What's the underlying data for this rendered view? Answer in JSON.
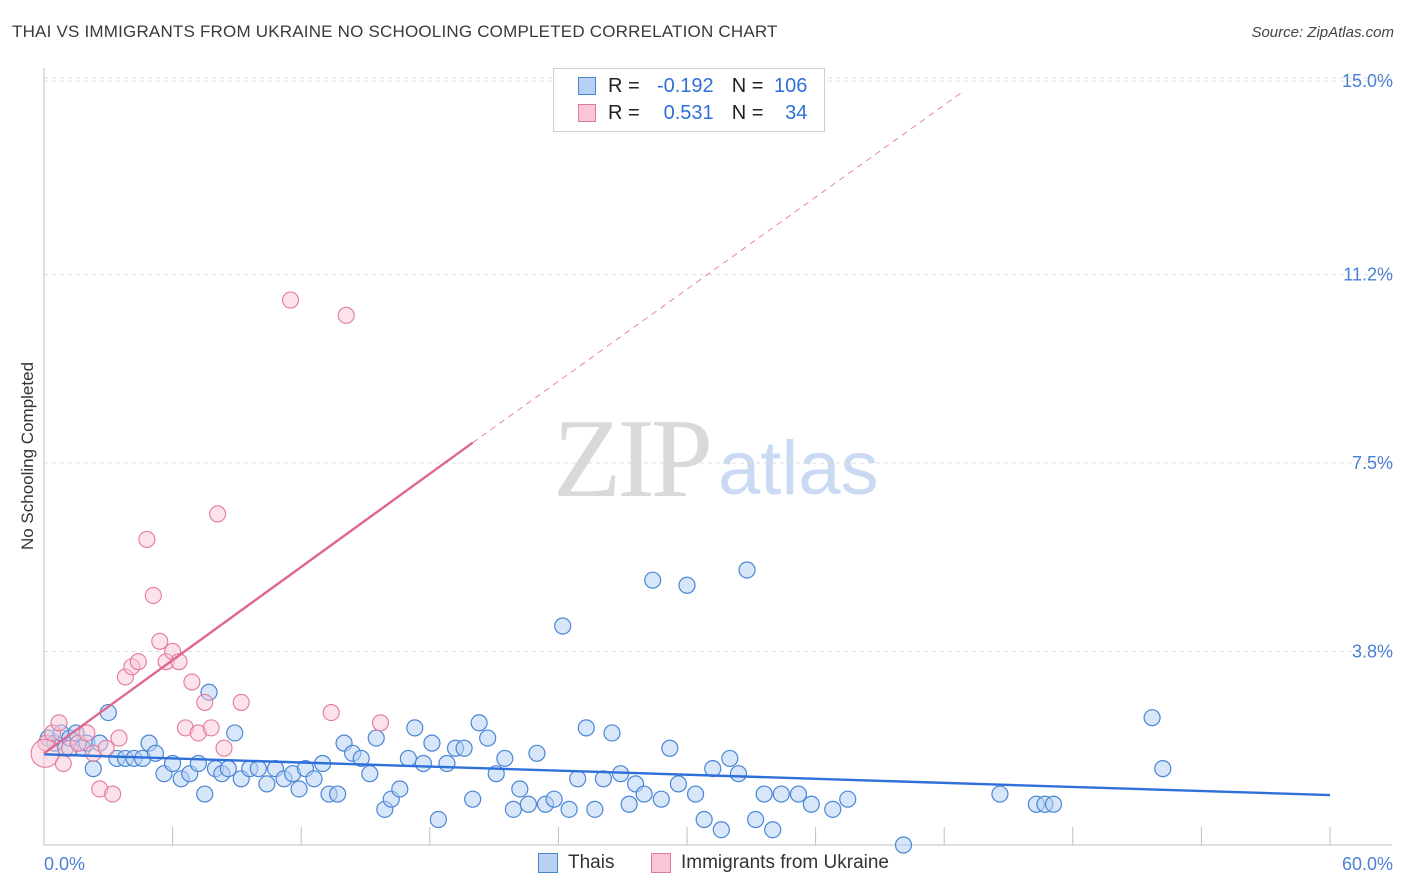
{
  "title": "THAI VS IMMIGRANTS FROM UKRAINE NO SCHOOLING COMPLETED CORRELATION CHART",
  "source": "Source: ZipAtlas.com",
  "watermark": {
    "zip": "ZIP",
    "atlas": "atlas"
  },
  "legend": {
    "rows": [
      {
        "r_label": "R =",
        "r_value": "-0.192",
        "n_label": "N =",
        "n_value": "106"
      },
      {
        "r_label": "R =",
        "r_value": "0.531",
        "n_label": "N =",
        "n_value": "34"
      }
    ]
  },
  "bottom_legend": [
    "Thais",
    "Immigrants from Ukraine"
  ],
  "colors": {
    "thai_fill": "#b7d1f3",
    "thai_stroke": "#4a86d6",
    "thai_line": "#2f6fd8",
    "ukr_fill": "#f9c6d6",
    "ukr_stroke": "#e27a9c",
    "ukr_line": "#e0668f",
    "grid": "#dcdcdc",
    "axis_text": "#4a7fd6"
  },
  "chart_data": {
    "type": "scatter",
    "title": "THAI VS IMMIGRANTS FROM UKRAINE NO SCHOOLING COMPLETED CORRELATION CHART",
    "xlabel": "",
    "ylabel": "No Schooling Completed",
    "xlim": [
      0,
      60
    ],
    "ylim": [
      0,
      15
    ],
    "x_tick_labels": [
      "0.0%",
      "60.0%"
    ],
    "y_ticks": [
      3.8,
      7.5,
      11.2,
      15.0
    ],
    "y_tick_labels": [
      "3.8%",
      "7.5%",
      "11.2%",
      "15.0%"
    ],
    "grid": true,
    "series": [
      {
        "name": "Thais",
        "r": -0.192,
        "n": 106,
        "trend": {
          "x0": 0,
          "y0": 1.78,
          "x1": 60,
          "y1": 0.98
        },
        "points": [
          [
            0.2,
            2.1
          ],
          [
            0.5,
            2.0
          ],
          [
            0.8,
            2.2
          ],
          [
            1.0,
            1.9
          ],
          [
            1.2,
            2.1
          ],
          [
            1.5,
            2.2
          ],
          [
            1.8,
            1.9
          ],
          [
            2.0,
            2.0
          ],
          [
            2.3,
            1.5
          ],
          [
            2.6,
            2.0
          ],
          [
            3.0,
            2.6
          ],
          [
            3.4,
            1.7
          ],
          [
            3.8,
            1.7
          ],
          [
            4.2,
            1.7
          ],
          [
            4.6,
            1.7
          ],
          [
            4.9,
            2.0
          ],
          [
            5.2,
            1.8
          ],
          [
            5.6,
            1.4
          ],
          [
            6.0,
            1.6
          ],
          [
            6.4,
            1.3
          ],
          [
            6.8,
            1.4
          ],
          [
            7.2,
            1.6
          ],
          [
            7.5,
            1.0
          ],
          [
            7.7,
            3.0
          ],
          [
            8.0,
            1.5
          ],
          [
            8.3,
            1.4
          ],
          [
            8.6,
            1.5
          ],
          [
            8.9,
            2.2
          ],
          [
            9.2,
            1.3
          ],
          [
            9.6,
            1.5
          ],
          [
            10.0,
            1.5
          ],
          [
            10.4,
            1.2
          ],
          [
            10.8,
            1.5
          ],
          [
            11.2,
            1.3
          ],
          [
            11.6,
            1.4
          ],
          [
            11.9,
            1.1
          ],
          [
            12.2,
            1.5
          ],
          [
            12.6,
            1.3
          ],
          [
            13.0,
            1.6
          ],
          [
            13.3,
            1.0
          ],
          [
            13.7,
            1.0
          ],
          [
            14.0,
            2.0
          ],
          [
            14.4,
            1.8
          ],
          [
            14.8,
            1.7
          ],
          [
            15.2,
            1.4
          ],
          [
            15.5,
            2.1
          ],
          [
            15.9,
            0.7
          ],
          [
            16.2,
            0.9
          ],
          [
            16.6,
            1.1
          ],
          [
            17.0,
            1.7
          ],
          [
            17.3,
            2.3
          ],
          [
            17.7,
            1.6
          ],
          [
            18.1,
            2.0
          ],
          [
            18.4,
            0.5
          ],
          [
            18.8,
            1.6
          ],
          [
            19.2,
            1.9
          ],
          [
            19.6,
            1.9
          ],
          [
            20.0,
            0.9
          ],
          [
            20.3,
            2.4
          ],
          [
            20.7,
            2.1
          ],
          [
            21.1,
            1.4
          ],
          [
            21.5,
            1.7
          ],
          [
            21.9,
            0.7
          ],
          [
            22.2,
            1.1
          ],
          [
            22.6,
            0.8
          ],
          [
            23.0,
            1.8
          ],
          [
            23.4,
            0.8
          ],
          [
            23.8,
            0.9
          ],
          [
            24.2,
            4.3
          ],
          [
            24.5,
            0.7
          ],
          [
            24.9,
            1.3
          ],
          [
            25.3,
            2.3
          ],
          [
            25.7,
            0.7
          ],
          [
            26.1,
            1.3
          ],
          [
            26.5,
            2.2
          ],
          [
            26.9,
            1.4
          ],
          [
            27.3,
            0.8
          ],
          [
            27.6,
            1.2
          ],
          [
            28.0,
            1.0
          ],
          [
            28.4,
            5.2
          ],
          [
            28.8,
            0.9
          ],
          [
            29.2,
            1.9
          ],
          [
            29.6,
            1.2
          ],
          [
            30.0,
            5.1
          ],
          [
            30.4,
            1.0
          ],
          [
            30.8,
            0.5
          ],
          [
            31.2,
            1.5
          ],
          [
            31.6,
            0.3
          ],
          [
            32.0,
            1.7
          ],
          [
            32.4,
            1.4
          ],
          [
            32.8,
            5.4
          ],
          [
            33.2,
            0.5
          ],
          [
            33.6,
            1.0
          ],
          [
            34.0,
            0.3
          ],
          [
            34.4,
            1.0
          ],
          [
            35.2,
            1.0
          ],
          [
            35.8,
            0.8
          ],
          [
            36.8,
            0.7
          ],
          [
            37.5,
            0.9
          ],
          [
            40.1,
            0.0
          ],
          [
            44.6,
            1.0
          ],
          [
            46.3,
            0.8
          ],
          [
            46.7,
            0.8
          ],
          [
            47.1,
            0.8
          ],
          [
            51.7,
            2.5
          ],
          [
            52.2,
            1.5
          ]
        ]
      },
      {
        "name": "Immigrants from Ukraine",
        "r": 0.531,
        "n": 34,
        "trend": {
          "x0": 0,
          "y0": 1.8,
          "x1": 20.0,
          "y1": 7.9
        },
        "trend_extension": {
          "x0": 20.0,
          "y0": 7.9,
          "x1": 42.9,
          "y1": 14.8
        },
        "points": [
          [
            0.1,
            2.0
          ],
          [
            0.4,
            2.2
          ],
          [
            0.7,
            2.4
          ],
          [
            0.9,
            1.6
          ],
          [
            1.2,
            1.9
          ],
          [
            1.6,
            2.0
          ],
          [
            2.0,
            2.2
          ],
          [
            2.3,
            1.8
          ],
          [
            2.6,
            1.1
          ],
          [
            2.9,
            1.9
          ],
          [
            3.2,
            1.0
          ],
          [
            3.5,
            2.1
          ],
          [
            3.8,
            3.3
          ],
          [
            4.1,
            3.5
          ],
          [
            4.4,
            3.6
          ],
          [
            4.8,
            6.0
          ],
          [
            5.1,
            4.9
          ],
          [
            5.4,
            4.0
          ],
          [
            5.7,
            3.6
          ],
          [
            6.0,
            3.8
          ],
          [
            6.3,
            3.6
          ],
          [
            6.6,
            2.3
          ],
          [
            6.9,
            3.2
          ],
          [
            7.2,
            2.2
          ],
          [
            7.5,
            2.8
          ],
          [
            7.8,
            2.3
          ],
          [
            8.1,
            6.5
          ],
          [
            8.4,
            1.9
          ],
          [
            9.2,
            2.8
          ],
          [
            11.5,
            10.7
          ],
          [
            13.4,
            2.6
          ],
          [
            14.1,
            10.4
          ],
          [
            15.7,
            2.4
          ],
          [
            0.05,
            1.8
          ]
        ]
      }
    ]
  }
}
